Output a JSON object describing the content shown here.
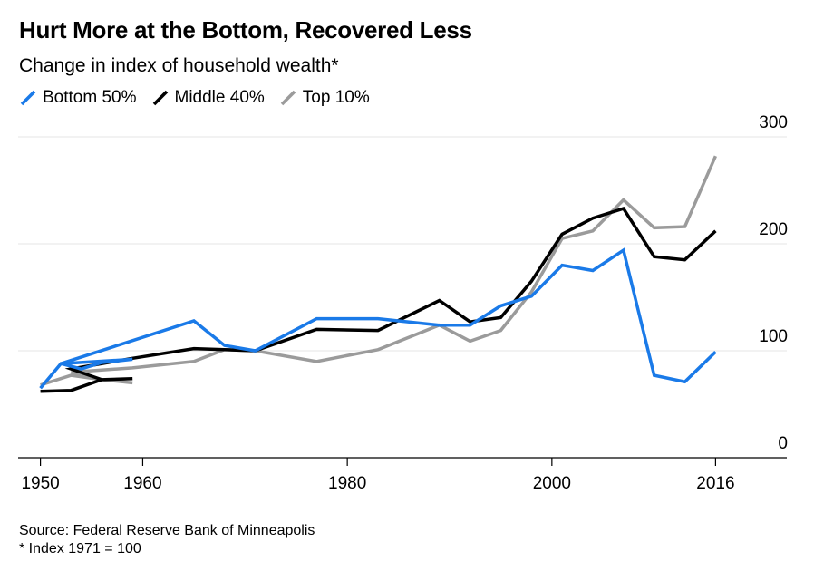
{
  "title": "Hurt More at the Bottom, Recovered Less",
  "subtitle": "Change in index of household wealth*",
  "legend": [
    {
      "label": "Bottom 50%",
      "color": "#1a7ae8"
    },
    {
      "label": "Middle 40%",
      "color": "#000000"
    },
    {
      "label": "Top 10%",
      "color": "#9b9b9b"
    }
  ],
  "source": "Source: Federal Reserve Bank of Minneapolis",
  "footnote": "* Index 1971 = 100",
  "chart_data": {
    "type": "line",
    "title": "Hurt More at the Bottom, Recovered Less",
    "subtitle": "Change in index of household wealth*",
    "xlim": [
      1948,
      2022
    ],
    "ylim": [
      -15,
      300
    ],
    "x_ticks": [
      1950,
      1960,
      1980,
      2000,
      2016
    ],
    "y_ticks": [
      0,
      100,
      200,
      300
    ],
    "y_axis_position": "right",
    "grid": "horizontal",
    "legend_position": "top-left",
    "series": [
      {
        "name": "Bottom 50%",
        "color": "#1a7ae8",
        "points": [
          [
            1950,
            65
          ],
          [
            1952,
            88
          ],
          [
            1954,
            83
          ],
          [
            1956,
            89
          ],
          [
            1959,
            92
          ],
          [
            1952,
            88
          ],
          [
            1965,
            128
          ],
          [
            1968,
            105
          ],
          [
            1971,
            100
          ],
          [
            1977,
            130
          ],
          [
            1983,
            130
          ],
          [
            1989,
            124
          ],
          [
            1992,
            124
          ],
          [
            1995,
            142
          ],
          [
            1998,
            151
          ],
          [
            2001,
            180
          ],
          [
            2004,
            175
          ],
          [
            2007,
            194
          ],
          [
            2010,
            77
          ],
          [
            2013,
            71
          ],
          [
            2016,
            99
          ]
        ]
      },
      {
        "name": "Middle 40%",
        "color": "#000000",
        "points": [
          [
            1950,
            62
          ],
          [
            1953,
            63
          ],
          [
            1956,
            73
          ],
          [
            1959,
            74
          ],
          [
            1956,
            73
          ],
          [
            1953,
            83
          ],
          [
            1959,
            93
          ],
          [
            1965,
            102
          ],
          [
            1971,
            100
          ],
          [
            1977,
            120
          ],
          [
            1983,
            119
          ],
          [
            1989,
            147
          ],
          [
            1992,
            127
          ],
          [
            1995,
            131
          ],
          [
            1998,
            165
          ],
          [
            2001,
            209
          ],
          [
            2004,
            224
          ],
          [
            2007,
            233
          ],
          [
            2010,
            188
          ],
          [
            2013,
            185
          ],
          [
            2016,
            212
          ]
        ]
      },
      {
        "name": "Top 10%",
        "color": "#9b9b9b",
        "points": [
          [
            1950,
            68
          ],
          [
            1953,
            77
          ],
          [
            1956,
            73
          ],
          [
            1959,
            70
          ],
          [
            1956,
            73
          ],
          [
            1953,
            80
          ],
          [
            1959,
            84
          ],
          [
            1965,
            90
          ],
          [
            1968,
            101
          ],
          [
            1971,
            100
          ],
          [
            1977,
            90
          ],
          [
            1983,
            101
          ],
          [
            1989,
            124
          ],
          [
            1992,
            109
          ],
          [
            1995,
            119
          ],
          [
            1998,
            155
          ],
          [
            2001,
            205
          ],
          [
            2004,
            212
          ],
          [
            2007,
            241
          ],
          [
            2010,
            215
          ],
          [
            2013,
            216
          ],
          [
            2016,
            282
          ]
        ]
      }
    ]
  }
}
